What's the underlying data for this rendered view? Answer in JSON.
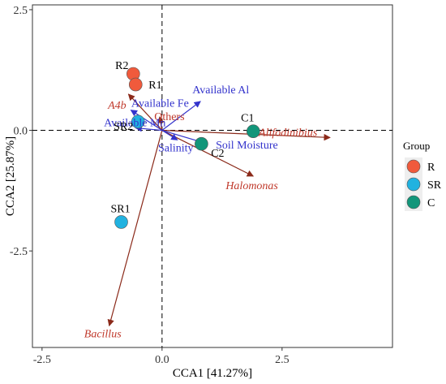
{
  "chart_data": {
    "type": "scatter",
    "xlabel": "CCA1 [41.27%]",
    "ylabel": "CCA2 [25.87%]",
    "xlim": [
      -2.7,
      4.8
    ],
    "ylim": [
      -4.5,
      2.6
    ],
    "xticks": [
      -2.5,
      0.0,
      2.5
    ],
    "yticks": [
      -2.5,
      0.0,
      2.5
    ],
    "xtick_labels": [
      "-2.5",
      "0.0",
      "2.5"
    ],
    "ytick_labels": [
      "-2.5",
      "0.0",
      "2.5"
    ],
    "reference_lines": {
      "x": 0,
      "y": 0,
      "style": "dashed"
    },
    "grid": false,
    "legend": {
      "title": "Group",
      "placement": "right",
      "entries": [
        {
          "label": "R",
          "color": "#f05a3c"
        },
        {
          "label": "SR",
          "color": "#21b2e0"
        },
        {
          "label": "C",
          "color": "#12967a"
        }
      ]
    },
    "samples": [
      {
        "label": "R2",
        "group": "R",
        "x": -0.6,
        "y": 1.17
      },
      {
        "label": "R1",
        "group": "R",
        "x": -0.55,
        "y": 0.95
      },
      {
        "label": "SR2",
        "group": "SR",
        "x": -0.5,
        "y": 0.18
      },
      {
        "label": "SR1",
        "group": "SR",
        "x": -0.85,
        "y": -1.9
      },
      {
        "label": "C1",
        "group": "C",
        "x": 1.9,
        "y": -0.02
      },
      {
        "label": "C2",
        "group": "C",
        "x": 0.82,
        "y": -0.28
      }
    ],
    "env_vectors": [
      {
        "name": "Available Al",
        "x": 0.8,
        "y": 0.6
      },
      {
        "name": "Available Fe",
        "x": -0.65,
        "y": 0.42
      },
      {
        "name": "Available Mn",
        "x": -0.55,
        "y": 0.05
      },
      {
        "name": "Salinity",
        "x": 0.32,
        "y": -0.2
      },
      {
        "name": "Soil Moisture",
        "x": 0.95,
        "y": -0.28
      }
    ],
    "taxa_vectors": [
      {
        "name": "Alifodinibius",
        "x": 3.5,
        "y": -0.15,
        "italic": true
      },
      {
        "name": "A4b",
        "x": -0.7,
        "y": 0.75,
        "italic": true
      },
      {
        "name": "Others",
        "x": -0.05,
        "y": 0.28,
        "italic": false
      },
      {
        "name": "Halomonas",
        "x": 1.9,
        "y": -0.95,
        "italic": true
      },
      {
        "name": "Bacillus",
        "x": -1.1,
        "y": -4.05,
        "italic": true
      }
    ]
  }
}
